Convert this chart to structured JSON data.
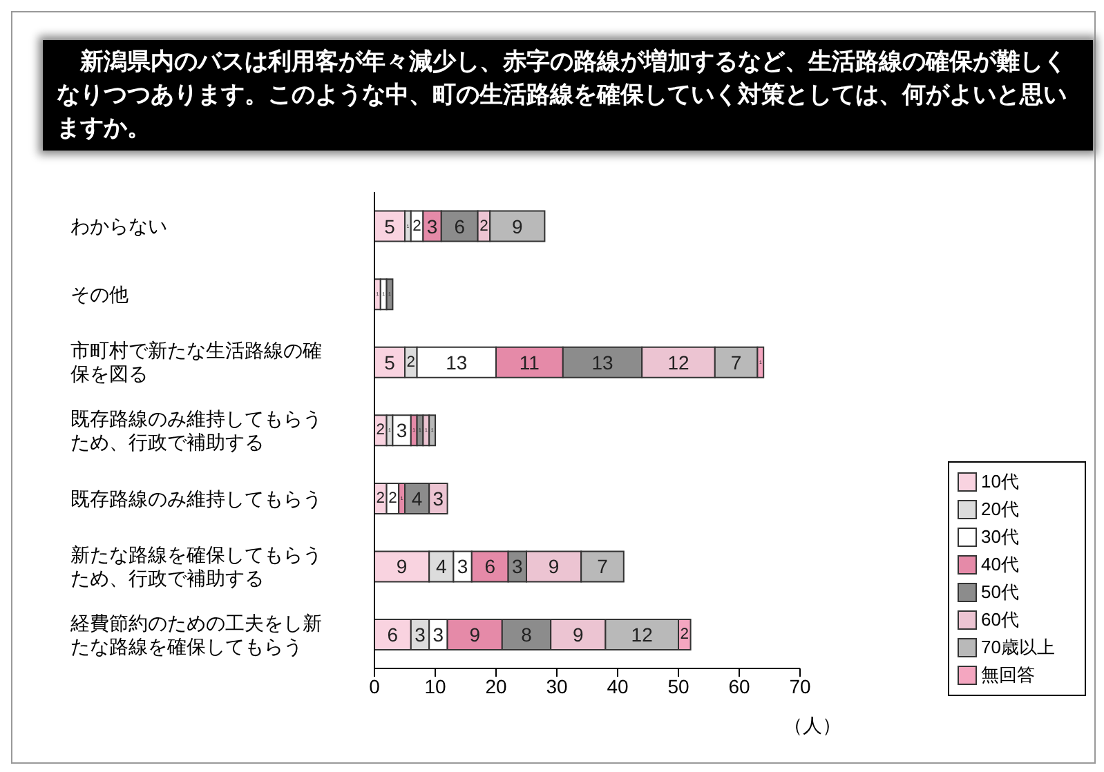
{
  "chart_data": {
    "type": "bar",
    "orientation": "horizontal",
    "stacked": true,
    "title": "　新潟県内のバスは利用客が年々減少し、赤字の路線が増加するなど、生活路線の確保が難しくなりつつあります。このような中、町の生活路線を確保していく対策としては、何がよいと思いますか。",
    "xlabel": "（人）",
    "categories": [
      "わからない",
      "その他",
      "市町村で新たな生活路線の確保を図る",
      "既存路線のみ維持してもらうため、行政で補助する",
      "既存路線のみ維持してもらう",
      "新たな路線を確保してもらうため、行政で補助する",
      "経費節約のための工夫をし新たな路線を確保してもらう"
    ],
    "series": [
      {
        "name": "10代",
        "color": "#f9d3e0",
        "values": [
          5,
          1,
          5,
          2,
          2,
          9,
          6
        ]
      },
      {
        "name": "20代",
        "color": "#dcdcdc",
        "values": [
          1,
          null,
          2,
          1,
          null,
          4,
          3
        ]
      },
      {
        "name": "30代",
        "color": "#ffffff",
        "values": [
          2,
          1,
          13,
          3,
          2,
          3,
          3
        ]
      },
      {
        "name": "40代",
        "color": "#e58aa8",
        "values": [
          3,
          null,
          11,
          1,
          1,
          6,
          9
        ]
      },
      {
        "name": "50代",
        "color": "#8c8c8c",
        "values": [
          6,
          1,
          13,
          1,
          4,
          3,
          8
        ]
      },
      {
        "name": "60代",
        "color": "#ecc4d2",
        "values": [
          2,
          null,
          12,
          1,
          3,
          9,
          9
        ]
      },
      {
        "name": "70歳以上",
        "color": "#b9b9b9",
        "values": [
          9,
          null,
          7,
          1,
          null,
          7,
          12
        ]
      },
      {
        "name": "無回答",
        "color": "#f4a6c0",
        "values": [
          null,
          null,
          1,
          null,
          null,
          null,
          2
        ]
      }
    ],
    "xlim": [
      0,
      70
    ],
    "xticks": [
      0,
      10,
      20,
      30,
      40,
      50,
      60,
      70
    ],
    "grid": false,
    "legend": "bottom right",
    "data_labels": true
  }
}
